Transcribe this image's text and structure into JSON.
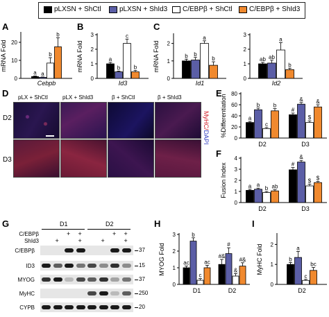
{
  "legend": [
    {
      "label": "pLXSN + ShCtl",
      "color": "#000000"
    },
    {
      "label": "pLXSN + ShId3",
      "color": "#5b5ea6"
    },
    {
      "label": "C/EBPβ + ShCtl",
      "color": "#ffffff"
    },
    {
      "label": "C/EBPβ + ShId3",
      "color": "#f0892e"
    }
  ],
  "panels": {
    "A": "A",
    "B": "B",
    "C": "C",
    "D": "D",
    "E": "E",
    "F": "F",
    "G": "G",
    "H": "H",
    "I": "I"
  },
  "micrographs": {
    "columns": [
      "pLX + ShCtl",
      "pLX + ShId3",
      "β + ShCtl",
      "β + ShId3"
    ],
    "rows": [
      "D2",
      "D3"
    ],
    "side_label_myhc": "MyHC/",
    "side_label_dapi": "DAPI"
  },
  "blots": {
    "day_labels": [
      "D1",
      "D2"
    ],
    "treatment_rows": [
      "C/EBPβ",
      "ShId3"
    ],
    "treatment_marks": [
      [
        "",
        "",
        "+",
        "+",
        "",
        "",
        "+",
        "+"
      ],
      [
        "",
        "+",
        "",
        "+",
        "",
        "+",
        "",
        "+"
      ]
    ],
    "bands": [
      "C/EBPβ",
      "ID3",
      "MYOG",
      "MyHC",
      "CYPB"
    ],
    "mw": [
      "37",
      "15",
      "37",
      "250",
      "20"
    ]
  },
  "chart_data": [
    {
      "panel": "A",
      "type": "bar",
      "ylabel": "mRNA Fold",
      "xlabel": "Cebpb",
      "ylim": [
        0,
        25
      ],
      "yticks": [
        0,
        10,
        20
      ],
      "categories": [
        "Cebpb"
      ],
      "series": [
        {
          "values": [
            1.0
          ]
        },
        {
          "values": [
            0.6
          ]
        },
        {
          "values": [
            8.5
          ]
        },
        {
          "values": [
            17.5
          ]
        }
      ],
      "errors": [
        0.3,
        0.2,
        3.0,
        5.0
      ],
      "letters": [
        "a",
        "a",
        "b",
        "b"
      ]
    },
    {
      "panel": "B",
      "type": "bar",
      "ylabel": "mRNA Fold",
      "xlabel": "Id3",
      "ylim": [
        0,
        3
      ],
      "yticks": [
        0,
        1,
        2,
        3
      ],
      "categories": [
        "Id3"
      ],
      "series": [
        {
          "values": [
            1.0
          ]
        },
        {
          "values": [
            0.45
          ]
        },
        {
          "values": [
            2.4
          ]
        },
        {
          "values": [
            0.45
          ]
        }
      ],
      "errors": [
        0.1,
        0.05,
        0.3,
        0.1
      ],
      "letters": [
        "a",
        "b",
        "c",
        "b"
      ]
    },
    {
      "panel": "C1",
      "type": "bar",
      "ylabel": "mRNA Fold",
      "xlabel": "Id1",
      "ylim": [
        0,
        2.5
      ],
      "yticks": [
        0,
        1,
        2
      ],
      "categories": [
        "Id1"
      ],
      "series": [
        {
          "values": [
            1.0
          ]
        },
        {
          "values": [
            1.05
          ]
        },
        {
          "values": [
            2.0
          ]
        },
        {
          "values": [
            0.75
          ]
        }
      ],
      "errors": [
        0.1,
        0.15,
        0.15,
        0.2
      ],
      "letters": [
        "b",
        "b",
        "a",
        "b"
      ]
    },
    {
      "panel": "C2",
      "type": "bar",
      "xlabel": "Id2",
      "ylim": [
        0,
        3
      ],
      "yticks": [
        0,
        1,
        2,
        3
      ],
      "categories": [
        "Id2"
      ],
      "series": [
        {
          "values": [
            1.0
          ]
        },
        {
          "values": [
            1.05
          ]
        },
        {
          "values": [
            1.95
          ]
        },
        {
          "values": [
            0.6
          ]
        }
      ],
      "errors": [
        0.1,
        0.2,
        0.5,
        0.1
      ],
      "letters": [
        "ab",
        "ab",
        "a",
        "b"
      ]
    },
    {
      "panel": "E",
      "type": "bar",
      "ylabel": "%Differentiation",
      "ylim": [
        0,
        80
      ],
      "yticks": [
        0,
        20,
        40,
        60,
        80
      ],
      "categories": [
        "D2",
        "D3"
      ],
      "series": [
        {
          "values": [
            28,
            42
          ]
        },
        {
          "values": [
            51,
            61
          ]
        },
        {
          "values": [
            17,
            28
          ]
        },
        {
          "values": [
            49,
            56
          ]
        }
      ],
      "errors": [
        [
          2,
          3
        ],
        [
          3,
          3
        ],
        [
          2,
          3
        ],
        [
          4,
          4
        ]
      ],
      "letters": [
        [
          "a",
          "#"
        ],
        [
          "b",
          "&"
        ],
        [
          "c",
          "$"
        ],
        [
          "b",
          "&"
        ]
      ]
    },
    {
      "panel": "F",
      "type": "bar",
      "ylabel": "Fusion Index",
      "ylim": [
        0,
        4
      ],
      "yticks": [
        0,
        1,
        2,
        3,
        4
      ],
      "categories": [
        "D2",
        "D3"
      ],
      "series": [
        {
          "values": [
            1.1,
            2.95
          ]
        },
        {
          "values": [
            1.2,
            3.65
          ]
        },
        {
          "values": [
            0.9,
            1.5
          ]
        },
        {
          "values": [
            1.05,
            1.8
          ]
        }
      ],
      "errors": [
        [
          0.1,
          0.2
        ],
        [
          0.1,
          0.15
        ],
        [
          0.1,
          0.15
        ],
        [
          0.1,
          0.1
        ]
      ],
      "letters": [
        [
          "a",
          "#"
        ],
        [
          "a",
          "&"
        ],
        [
          "b",
          "$"
        ],
        [
          "ab",
          "$"
        ]
      ]
    },
    {
      "panel": "H",
      "type": "bar",
      "ylabel": "MYOG Fold",
      "ylim": [
        0,
        3
      ],
      "yticks": [
        0,
        1,
        2,
        3
      ],
      "categories": [
        "D1",
        "D2"
      ],
      "series": [
        {
          "values": [
            1.0,
            1.2
          ]
        },
        {
          "values": [
            2.6,
            1.85
          ]
        },
        {
          "values": [
            0.25,
            0.5
          ]
        },
        {
          "values": [
            1.0,
            1.1
          ]
        }
      ],
      "errors": [
        [
          0.1,
          0.3
        ],
        [
          0.2,
          0.35
        ],
        [
          0.1,
          0.15
        ],
        [
          0.15,
          0.2
        ]
      ],
      "letters": [
        [
          "ac",
          "#&"
        ],
        [
          "b",
          "#"
        ],
        [
          "c",
          "&"
        ],
        [
          "ac",
          "#&"
        ]
      ]
    },
    {
      "panel": "I",
      "type": "bar",
      "ylabel": "MyHC Fold",
      "ylim": [
        0,
        2.5
      ],
      "yticks": [
        0,
        1,
        2
      ],
      "categories": [
        "D2"
      ],
      "series": [
        {
          "values": [
            1.0
          ]
        },
        {
          "values": [
            1.35
          ]
        },
        {
          "values": [
            0.2
          ]
        },
        {
          "values": [
            0.7
          ]
        }
      ],
      "errors": [
        0.1,
        0.3,
        0.05,
        0.15
      ],
      "letters": [
        "b",
        "a",
        "c",
        "bc"
      ]
    }
  ]
}
